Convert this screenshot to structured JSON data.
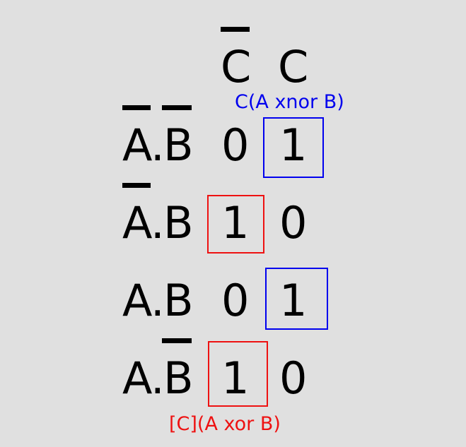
{
  "columns": {
    "c_bar": "C",
    "c": "C"
  },
  "rows": [
    {
      "a": "A",
      "dot": ".",
      "b": "B",
      "val_c_bar": "0",
      "val_c": "1"
    },
    {
      "a": "A",
      "dot": ".",
      "b": "B",
      "val_c_bar": "1",
      "val_c": "0"
    },
    {
      "a": "A",
      "dot": ".",
      "b": "B",
      "val_c_bar": "0",
      "val_c": "1"
    },
    {
      "a": "A",
      "dot": ".",
      "b": "B",
      "val_c_bar": "1",
      "val_c": "0"
    }
  ],
  "annotations": {
    "blue_group": "C(A xnor B)",
    "red_group": "[C](A xor B)"
  },
  "colors": {
    "blue": "#0000ee",
    "red": "#ee1111",
    "text": "#000000",
    "background": "#e0e0e0"
  }
}
